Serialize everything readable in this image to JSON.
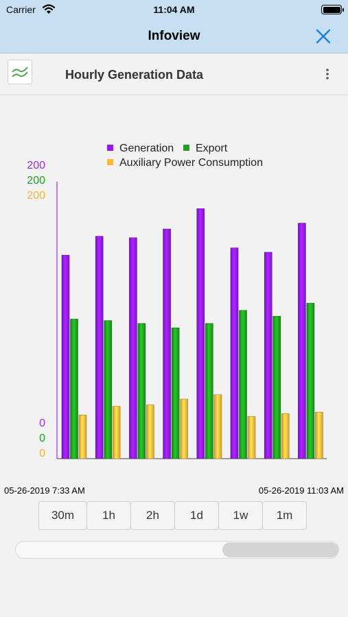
{
  "status_bar": {
    "carrier": "Carrier",
    "time": "11:04 AM",
    "battery_level": 1.0
  },
  "nav": {
    "title": "Infoview",
    "close_icon": "close-icon"
  },
  "header": {
    "title": "Hourly Generation Data",
    "widget_icon": "line-chart-icon",
    "more_icon": "more-vertical-icon"
  },
  "chart_data": {
    "type": "bar",
    "title": "",
    "xlabel": "",
    "ylabel": "",
    "categories": [
      "",
      "",
      "",
      "",
      "",
      "",
      "",
      ""
    ],
    "series": [
      {
        "name": "Generation",
        "color": "#8e1bf0",
        "values": [
          140,
          153,
          152,
          158,
          172,
          145,
          142,
          162
        ]
      },
      {
        "name": "Export",
        "color": "#1fa01f",
        "values": [
          96,
          95,
          93,
          90,
          93,
          102,
          98,
          107
        ]
      },
      {
        "name": "Auxiliary Power Consumption",
        "color": "#fcb83f",
        "values": [
          30,
          36,
          37,
          41,
          44,
          29,
          31,
          32
        ]
      }
    ],
    "y_axes": [
      {
        "series": "Generation",
        "color": "#9b2df0",
        "min_label": "0",
        "max_label": "200"
      },
      {
        "series": "Export",
        "color": "#1fa01f",
        "min_label": "0",
        "max_label": "200"
      },
      {
        "series": "Auxiliary Power Consumption",
        "color": "#f7b23a",
        "min_label": "0",
        "max_label": "200"
      }
    ],
    "ylim": [
      0,
      200
    ],
    "legend_position": "top-center",
    "grid": false
  },
  "range": {
    "start": "05-26-2019 7:33 AM",
    "end": "05-26-2019 11:03 AM"
  },
  "intervals": [
    {
      "label": "30m"
    },
    {
      "label": "1h"
    },
    {
      "label": "2h"
    },
    {
      "label": "1d"
    },
    {
      "label": "1w"
    },
    {
      "label": "1m"
    }
  ],
  "scrubber": {
    "window_start_fraction": 0.64,
    "window_end_fraction": 1.0
  }
}
